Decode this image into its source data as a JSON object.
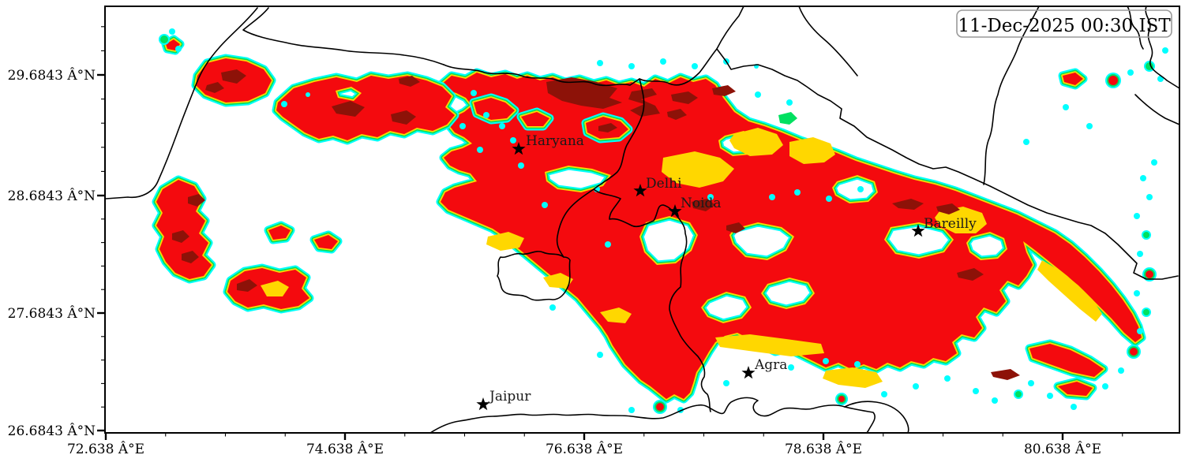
{
  "map": {
    "timestamp": "11-Dec-2025 00:30 IST",
    "cities": [
      "Haryana",
      "Delhi",
      "Noida",
      "Bareilly",
      "Agra",
      "Jaipur"
    ],
    "x_axis": {
      "tick_labels": [
        "72.638 Â°E",
        "74.638 Â°E",
        "76.638 Â°E",
        "78.638 Â°E",
        "80.638 Â°E"
      ]
    },
    "y_axis": {
      "tick_labels": [
        "29.6843 Â°N",
        "28.6843 Â°N",
        "27.6843 Â°N",
        "26.6843 Â°N"
      ]
    },
    "colors": {
      "fog_dense_red": "#f40a0e",
      "fog_very_dense_dark_red": "#8d1208",
      "fog_moderate_yellow": "#ffd700",
      "fog_light_green": "#00e060",
      "fog_outer_cyan": "#00ffff",
      "boundary_black": "#000000",
      "timestamp_border_gray": "#9a9a9a",
      "text_black": "#000000",
      "background_white": "#ffffff"
    }
  }
}
